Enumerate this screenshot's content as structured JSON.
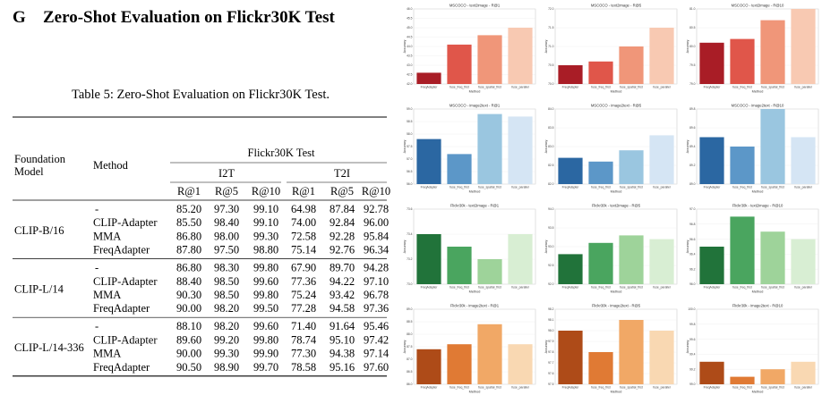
{
  "heading": {
    "number": "G",
    "title": "Zero-Shot Evaluation on Flickr30K Test"
  },
  "table": {
    "caption": "Table 5: Zero-Shot Evaluation on Flickr30K Test.",
    "col_foundation": "Foundation Model",
    "col_method": "Method",
    "span_header": "Flickr30K Test",
    "group_i2t": "I2T",
    "group_t2i": "T2I",
    "metrics": [
      "R@1",
      "R@5",
      "R@10",
      "R@1",
      "R@5",
      "R@10"
    ],
    "blocks": [
      {
        "model": "CLIP-B/16",
        "rows": [
          {
            "method": "-",
            "vals": [
              "85.20",
              "97.30",
              "99.10",
              "64.98",
              "87.84",
              "92.78"
            ]
          },
          {
            "method": "CLIP-Adapter",
            "vals": [
              "85.50",
              "98.40",
              "99.10",
              "74.00",
              "92.84",
              "96.00"
            ]
          },
          {
            "method": "MMA",
            "vals": [
              "86.80",
              "98.00",
              "99.30",
              "72.58",
              "92.28",
              "95.84"
            ]
          },
          {
            "method": "FreqAdapter",
            "vals": [
              "87.80",
              "97.50",
              "98.80",
              "75.14",
              "92.76",
              "96.34"
            ]
          }
        ]
      },
      {
        "model": "CLIP-L/14",
        "rows": [
          {
            "method": "-",
            "vals": [
              "86.80",
              "98.30",
              "99.80",
              "67.90",
              "89.70",
              "94.28"
            ]
          },
          {
            "method": "CLIP-Adapter",
            "vals": [
              "88.40",
              "98.50",
              "99.60",
              "77.36",
              "94.22",
              "97.10"
            ]
          },
          {
            "method": "MMA",
            "vals": [
              "90.30",
              "98.50",
              "99.80",
              "75.24",
              "93.42",
              "96.78"
            ]
          },
          {
            "method": "FreqAdapter",
            "vals": [
              "90.00",
              "98.20",
              "99.50",
              "77.28",
              "94.58",
              "97.36"
            ]
          }
        ]
      },
      {
        "model": "CLIP-L/14-336",
        "rows": [
          {
            "method": "-",
            "vals": [
              "88.10",
              "98.20",
              "99.60",
              "71.40",
              "91.64",
              "95.46"
            ]
          },
          {
            "method": "CLIP-Adapter",
            "vals": [
              "89.60",
              "99.20",
              "99.80",
              "78.74",
              "95.10",
              "97.42"
            ]
          },
          {
            "method": "MMA",
            "vals": [
              "90.00",
              "99.30",
              "99.90",
              "77.30",
              "94.38",
              "97.14"
            ]
          },
          {
            "method": "FreqAdapter",
            "vals": [
              "90.50",
              "98.90",
              "99.70",
              "78.58",
              "95.16",
              "97.60"
            ]
          }
        ]
      }
    ]
  },
  "chart_data": [
    {
      "type": "bar",
      "title": "MSCOCO - text2image - R@1",
      "categories": [
        "FreqAdapter",
        "fuse_freq_first",
        "fuse_spatial_first",
        "fuse_parallel"
      ],
      "values": [
        42.6,
        44.1,
        44.6,
        45.0
      ],
      "ylim": [
        42.0,
        46.0
      ],
      "yticks": [
        "42.0",
        "42.5",
        "43.0",
        "43.5",
        "44.0",
        "44.5",
        "45.0",
        "45.5",
        "46.0"
      ],
      "xlabel": "Method",
      "ylabel": "Accuracy",
      "colors": [
        "#a91d26",
        "#e0564a",
        "#f09679",
        "#f8c9b2"
      ]
    },
    {
      "type": "bar",
      "title": "MSCOCO - text2image - R@5",
      "categories": [
        "FreqAdapter",
        "fuse_freq_first",
        "fuse_spatial_first",
        "fuse_parallel"
      ],
      "values": [
        70.5,
        70.6,
        71.0,
        71.5
      ],
      "ylim": [
        70.0,
        72.0
      ],
      "yticks": [
        "70.0",
        "70.5",
        "71.0",
        "71.5",
        "72.0"
      ],
      "xlabel": "Method",
      "ylabel": "Accuracy",
      "colors": [
        "#a91d26",
        "#e0564a",
        "#f09679",
        "#f8c9b2"
      ]
    },
    {
      "type": "bar",
      "title": "MSCOCO - text2image - R@10",
      "categories": [
        "FreqAdapter",
        "fuse_freq_first",
        "fuse_spatial_first",
        "fuse_parallel"
      ],
      "values": [
        80.1,
        80.2,
        80.7,
        81.0
      ],
      "ylim": [
        79.0,
        81.0
      ],
      "yticks": [
        "79.0",
        "79.5",
        "80.0",
        "80.5",
        "81.0"
      ],
      "xlabel": "Method",
      "ylabel": "Accuracy",
      "colors": [
        "#a91d26",
        "#e0564a",
        "#f09679",
        "#f8c9b2"
      ]
    },
    {
      "type": "bar",
      "title": "MSCOCO - image2text - R@1",
      "categories": [
        "FreqAdapter",
        "fuse_freq_first",
        "fuse_spatial_first",
        "fuse_parallel"
      ],
      "values": [
        57.8,
        57.2,
        58.8,
        58.7
      ],
      "ylim": [
        56.0,
        59.0
      ],
      "yticks": [
        "56.0",
        "56.5",
        "57.0",
        "57.5",
        "58.0",
        "58.5",
        "59.0"
      ],
      "xlabel": "Method",
      "ylabel": "Accuracy",
      "colors": [
        "#2b67a2",
        "#5c97c8",
        "#9ac6e0",
        "#d5e5f4"
      ]
    },
    {
      "type": "bar",
      "title": "MSCOCO - image2text - R@5",
      "categories": [
        "FreqAdapter",
        "fuse_freq_first",
        "fuse_spatial_first",
        "fuse_parallel"
      ],
      "values": [
        82.7,
        82.6,
        82.9,
        83.3
      ],
      "ylim": [
        82.0,
        84.0
      ],
      "yticks": [
        "82.0",
        "82.5",
        "83.0",
        "83.5",
        "84.0"
      ],
      "xlabel": "Method",
      "ylabel": "Accuracy",
      "colors": [
        "#2b67a2",
        "#5c97c8",
        "#9ac6e0",
        "#d5e5f4"
      ]
    },
    {
      "type": "bar",
      "title": "MSCOCO - image2text - R@10",
      "categories": [
        "FreqAdapter",
        "fuse_freq_first",
        "fuse_spatial_first",
        "fuse_parallel"
      ],
      "values": [
        89.5,
        89.4,
        89.8,
        89.5
      ],
      "ylim": [
        89.0,
        89.8
      ],
      "yticks": [
        "89.0",
        "89.2",
        "89.4",
        "89.6",
        "89.8"
      ],
      "xlabel": "Method",
      "ylabel": "Accuracy",
      "colors": [
        "#2b67a2",
        "#5c97c8",
        "#9ac6e0",
        "#d5e5f4"
      ]
    },
    {
      "type": "bar",
      "title": "Flickr30k - text2image - R@1",
      "categories": [
        "FreqAdapter",
        "fuse_freq_first",
        "fuse_spatial_first",
        "fuse_parallel"
      ],
      "values": [
        73.4,
        73.3,
        73.2,
        73.4
      ],
      "ylim": [
        73.0,
        73.6
      ],
      "yticks": [
        "73.0",
        "73.2",
        "73.4",
        "73.6"
      ],
      "xlabel": "Method",
      "ylabel": "Accuracy",
      "colors": [
        "#21733a",
        "#4aa55f",
        "#9ed39a",
        "#d8eed3"
      ]
    },
    {
      "type": "bar",
      "title": "Flickr30k - text2image - R@5",
      "categories": [
        "FreqAdapter",
        "fuse_freq_first",
        "fuse_spatial_first",
        "fuse_parallel"
      ],
      "values": [
        92.8,
        93.1,
        93.3,
        93.2
      ],
      "ylim": [
        92.0,
        94.0
      ],
      "yticks": [
        "92.0",
        "92.5",
        "93.0",
        "93.5",
        "94.0"
      ],
      "xlabel": "Method",
      "ylabel": "Accuracy",
      "colors": [
        "#21733a",
        "#4aa55f",
        "#9ed39a",
        "#d8eed3"
      ]
    },
    {
      "type": "bar",
      "title": "Flickr30k - text2image - R@10",
      "categories": [
        "FreqAdapter",
        "fuse_freq_first",
        "fuse_spatial_first",
        "fuse_parallel"
      ],
      "values": [
        96.5,
        96.9,
        96.7,
        96.6
      ],
      "ylim": [
        96.0,
        97.0
      ],
      "yticks": [
        "96.0",
        "96.2",
        "96.4",
        "96.6",
        "96.8",
        "97.0"
      ],
      "xlabel": "Method",
      "ylabel": "Accuracy",
      "colors": [
        "#21733a",
        "#4aa55f",
        "#9ed39a",
        "#d8eed3"
      ]
    },
    {
      "type": "bar",
      "title": "Flickr30k - image2text - R@1",
      "categories": [
        "FreqAdapter",
        "fuse_freq_first",
        "fuse_spatial_first",
        "fuse_parallel"
      ],
      "values": [
        87.4,
        87.6,
        88.4,
        87.6
      ],
      "ylim": [
        86.0,
        89.0
      ],
      "yticks": [
        "86.0",
        "86.5",
        "87.0",
        "87.5",
        "88.0",
        "88.5",
        "89.0"
      ],
      "xlabel": "Method",
      "ylabel": "Accuracy",
      "colors": [
        "#ae4b18",
        "#e07a34",
        "#f1a866",
        "#f9d8b2"
      ]
    },
    {
      "type": "bar",
      "title": "Flickr30k - image2text - R@5",
      "categories": [
        "FreqAdapter",
        "fuse_freq_first",
        "fuse_spatial_first",
        "fuse_parallel"
      ],
      "values": [
        98.0,
        97.8,
        98.1,
        98.0
      ],
      "ylim": [
        97.5,
        98.2
      ],
      "yticks": [
        "97.5",
        "97.6",
        "97.7",
        "97.8",
        "97.9",
        "98.0",
        "98.1",
        "98.2"
      ],
      "xlabel": "Method",
      "ylabel": "Accuracy",
      "colors": [
        "#ae4b18",
        "#e07a34",
        "#f1a866",
        "#f9d8b2"
      ]
    },
    {
      "type": "bar",
      "title": "Flickr30k - image2text - R@10",
      "categories": [
        "FreqAdapter",
        "fuse_freq_first",
        "fuse_spatial_first",
        "fuse_parallel"
      ],
      "values": [
        99.3,
        99.1,
        99.2,
        99.3
      ],
      "ylim": [
        99.0,
        100.0
      ],
      "yticks": [
        "99.0",
        "99.2",
        "99.4",
        "99.6",
        "99.8",
        "100.0"
      ],
      "xlabel": "Method",
      "ylabel": "Accuracy",
      "colors": [
        "#ae4b18",
        "#e07a34",
        "#f1a866",
        "#f9d8b2"
      ]
    }
  ]
}
